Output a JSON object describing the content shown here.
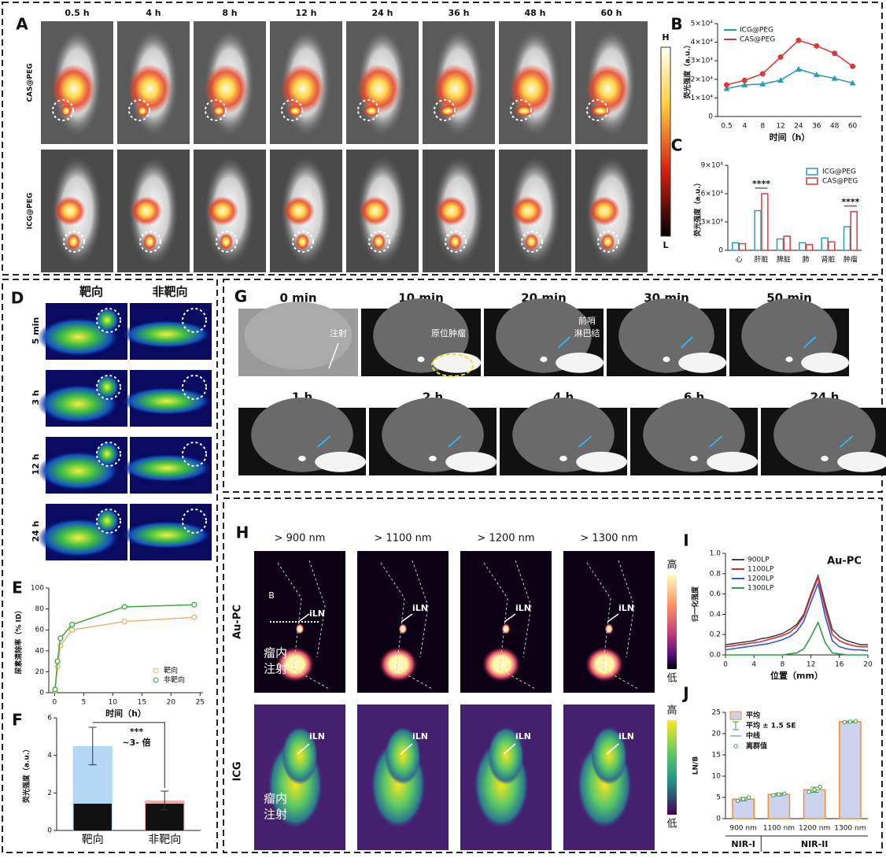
{
  "figure": {
    "A": {
      "label": "A",
      "times": [
        "0.5 h",
        "4 h",
        "8 h",
        "12 h",
        "24 h",
        "36 h",
        "48 h",
        "60 h"
      ],
      "rows": [
        "CAS@PEG",
        "ICG@PEG"
      ],
      "scale": [
        "H",
        "L"
      ]
    },
    "D": {
      "label": "D",
      "columns": [
        "靶向",
        "非靶向"
      ],
      "rows": [
        "5 min",
        "3 h",
        "12 h",
        "24 h"
      ]
    },
    "G": {
      "label": "G",
      "times": [
        "0 min",
        "10 min",
        "20 min",
        "30 min",
        "50 min",
        "1 h",
        "2 h",
        "4 h",
        "6 h",
        "24 h"
      ],
      "annotations": [
        "注射",
        "原位肿瘤",
        "前哨",
        "淋巴结"
      ]
    },
    "H": {
      "label": "H",
      "filters": [
        "> 900 nm",
        "> 1100 nm",
        "> 1200 nm",
        "> 1300 nm"
      ],
      "rows": [
        "Au-PC",
        "ICG"
      ],
      "line_label": "B",
      "node": "iLN",
      "injection": [
        "瘤内",
        "注射"
      ],
      "scale": [
        "高",
        "低"
      ]
    }
  },
  "chart_data": [
    {
      "label": "B",
      "type": "line",
      "categories": [
        "0.5",
        "4",
        "8",
        "12",
        "24",
        "36",
        "48",
        "60"
      ],
      "series": [
        {
          "name": "ICG@PEG",
          "color": "#2a9bb5",
          "marker": "triangle",
          "values": [
            15000,
            17000,
            17500,
            19500,
            25500,
            22500,
            20500,
            18000
          ]
        },
        {
          "name": "CAS@PEG",
          "color": "#d93a3a",
          "marker": "circle",
          "values": [
            17000,
            19500,
            23000,
            32000,
            41000,
            38000,
            34000,
            27000
          ]
        }
      ],
      "ylim": [
        0,
        50000
      ],
      "yticks": [
        0,
        {
          "value": 10000,
          "label": "1×10⁴"
        },
        {
          "value": 20000,
          "label": "2×10⁴"
        },
        {
          "value": 30000,
          "label": "3×10⁴"
        },
        {
          "value": 40000,
          "label": "4×10⁴"
        },
        {
          "value": 50000,
          "label": "5×10⁴"
        }
      ],
      "xlabel": "时间（h）",
      "ylabel": "荧光强度（a.u.）",
      "legend": "upper left"
    },
    {
      "label": "C",
      "type": "bar",
      "bar_style": "outline",
      "categories": [
        "心",
        "肝脏",
        "脾脏",
        "肺",
        "肾脏",
        "肿瘤"
      ],
      "series": [
        {
          "name": "ICG@PEG",
          "color": "#2a9bb5",
          "values": [
            8000,
            42000,
            12000,
            8000,
            13000,
            25000
          ]
        },
        {
          "name": "CAS@PEG",
          "color": "#e03a3a",
          "values": [
            7000,
            60000,
            15000,
            6000,
            9000,
            41000
          ]
        }
      ],
      "ylim": [
        0,
        90000
      ],
      "yticks": [
        0,
        {
          "value": 30000,
          "label": "3×10⁴"
        },
        {
          "value": 60000,
          "label": "6×10⁴"
        },
        {
          "value": 90000,
          "label": "9×10⁴"
        }
      ],
      "ylabel": "荧光强度（a.u.）",
      "annotations": [
        "****",
        "****"
      ],
      "legend": "upper right"
    },
    {
      "label": "E",
      "type": "scatter",
      "x": [
        0.083,
        0.5,
        1,
        3,
        12,
        24
      ],
      "series": [
        {
          "name": "靶向",
          "color": "#f0b070",
          "values": [
            2,
            25,
            45,
            60,
            68,
            72
          ]
        },
        {
          "name": "非靶向",
          "color": "#3aaa3a",
          "values": [
            3,
            30,
            52,
            65,
            82,
            84
          ]
        }
      ],
      "xlim": [
        -1,
        25.5
      ],
      "xticks": [
        0,
        5,
        10,
        15,
        20,
        25
      ],
      "ylim": [
        0,
        100
      ],
      "yticks": [
        0,
        20,
        40,
        60,
        80,
        100
      ],
      "xlabel": "时间（h）",
      "ylabel": "尿素清除率（% ID）",
      "legend": "lower right"
    },
    {
      "label": "F",
      "type": "bar",
      "categories": [
        "靶向",
        "非靶向"
      ],
      "values": [
        4.5,
        1.6
      ],
      "errors": [
        1.0,
        0.5
      ],
      "colors": [
        "#b3d7f5",
        "#f5a9a9"
      ],
      "ylim": [
        0,
        6
      ],
      "yticks": [
        0,
        2,
        4,
        6
      ],
      "ylabel": "荧光强度（a.u.）",
      "annotations": [
        "***",
        "~3- 倍"
      ]
    },
    {
      "label": "I",
      "type": "line",
      "x": [
        0,
        1,
        2,
        3,
        4,
        5,
        6,
        7,
        8,
        9,
        10,
        11,
        12,
        13,
        14,
        15,
        16,
        17,
        18,
        19,
        20
      ],
      "series": [
        {
          "name": "900LP",
          "color": "#444444",
          "values": [
            0.1,
            0.11,
            0.12,
            0.13,
            0.14,
            0.16,
            0.17,
            0.19,
            0.21,
            0.25,
            0.3,
            0.4,
            0.6,
            0.78,
            0.5,
            0.25,
            0.18,
            0.14,
            0.12,
            0.1,
            0.1
          ]
        },
        {
          "name": "1100LP",
          "color": "#e02a2a",
          "values": [
            0.08,
            0.09,
            0.1,
            0.11,
            0.12,
            0.13,
            0.15,
            0.17,
            0.19,
            0.22,
            0.28,
            0.38,
            0.58,
            0.76,
            0.45,
            0.2,
            0.14,
            0.11,
            0.09,
            0.08,
            0.08
          ]
        },
        {
          "name": "1200LP",
          "color": "#2a5ae0",
          "values": [
            0.05,
            0.06,
            0.07,
            0.08,
            0.09,
            0.1,
            0.11,
            0.13,
            0.15,
            0.18,
            0.23,
            0.33,
            0.52,
            0.7,
            0.38,
            0.14,
            0.08,
            0.06,
            0.05,
            0.05,
            0.04
          ]
        },
        {
          "name": "1300LP",
          "color": "#2aa04a",
          "values": [
            0,
            0,
            0,
            0,
            0,
            0,
            0,
            0,
            0,
            0.01,
            0.02,
            0.06,
            0.18,
            0.32,
            0.12,
            0.02,
            0.01,
            0,
            0,
            0,
            0
          ]
        }
      ],
      "xlim": [
        0,
        20
      ],
      "xticks": [
        0,
        4,
        8,
        12,
        16,
        20
      ],
      "ylim": [
        0,
        1
      ],
      "yticks": [
        {
          "value": 0,
          "label": "0.0"
        },
        0.2,
        0.4,
        0.6,
        0.8,
        {
          "value": 1,
          "label": "1.0"
        }
      ],
      "xlabel": "位置（mm）",
      "ylabel": "归一化强度",
      "annotations": [
        "Au-PC"
      ],
      "legend": "upper left"
    },
    {
      "label": "J",
      "type": "bar",
      "categories": [
        "900 nm",
        "1100 nm",
        "1200 nm",
        "1300 nm"
      ],
      "values": [
        4.6,
        5.7,
        6.8,
        22.8
      ],
      "errors": [
        0.4,
        0.3,
        0.6,
        0.15
      ],
      "points": [
        [
          4.2,
          4.6,
          5.0
        ],
        [
          5.5,
          5.7,
          5.9
        ],
        [
          6.3,
          6.8,
          7.5
        ],
        [
          22.7,
          22.8,
          22.9
        ]
      ],
      "color": "#cdd3ee",
      "edge_color": "#f0902a",
      "point_color": "#2aa04a",
      "ylim": [
        0,
        25
      ],
      "yticks": [
        0,
        5,
        10,
        15,
        20,
        25
      ],
      "ylabel": "LN/B",
      "legend_items": [
        "平均",
        "平均 ± 1.5 SE",
        "中线",
        "离群值"
      ],
      "groups": [
        "NIR-I",
        "NIR-II"
      ],
      "legend": "upper left"
    }
  ]
}
